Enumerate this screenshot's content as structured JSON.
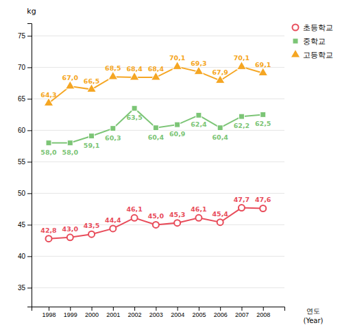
{
  "chart_data": {
    "type": "line",
    "x": [
      1998,
      1999,
      2000,
      2001,
      2002,
      2003,
      2004,
      2005,
      2006,
      2007,
      2008
    ],
    "xlim": [
      1997.2,
      2009.0
    ],
    "xticks": [
      1998,
      1999,
      2000,
      2001,
      2002,
      2003,
      2004,
      2005,
      2006,
      2007,
      2008
    ],
    "ylim": [
      32,
      77
    ],
    "yticks": [
      35,
      40,
      45,
      50,
      55,
      60,
      65,
      70,
      75
    ],
    "ylabel": "kg",
    "xlabel": [
      "연도",
      "(Year)"
    ],
    "grid": true,
    "legend": "upper right",
    "data_labels": true,
    "series": [
      {
        "name": "초등학교",
        "color": "#e84c5a",
        "marker": "circle",
        "values": [
          42.8,
          43.0,
          43.5,
          44.4,
          46.1,
          45.0,
          45.3,
          46.1,
          45.4,
          47.7,
          47.6
        ],
        "value_labels": [
          "42,8",
          "43,0",
          "43,5",
          "44,4",
          "46,1",
          "45,0",
          "45,3",
          "46,1",
          "45,4",
          "47,7",
          "47,6"
        ]
      },
      {
        "name": "중학교",
        "color": "#7cc576",
        "marker": "square",
        "values": [
          58.0,
          58.0,
          59.1,
          60.3,
          63.5,
          60.4,
          60.9,
          62.4,
          60.4,
          62.2,
          62.5
        ],
        "value_labels": [
          "58,0",
          "58,0",
          "59,1",
          "60,3",
          "63,5",
          "60,4",
          "60,9",
          "62,4",
          "60,4",
          "62,2",
          "62,5"
        ]
      },
      {
        "name": "고등학교",
        "color": "#f5a623",
        "marker": "triangle",
        "values": [
          64.3,
          67.0,
          66.5,
          68.5,
          68.4,
          68.4,
          70.1,
          69.3,
          67.9,
          70.1,
          69.1
        ],
        "value_labels": [
          "64,3",
          "67,0",
          "66,5",
          "68,5",
          "68,4",
          "68,4",
          "70,1",
          "69,3",
          "67,9",
          "70,1",
          "69,1"
        ]
      }
    ]
  }
}
